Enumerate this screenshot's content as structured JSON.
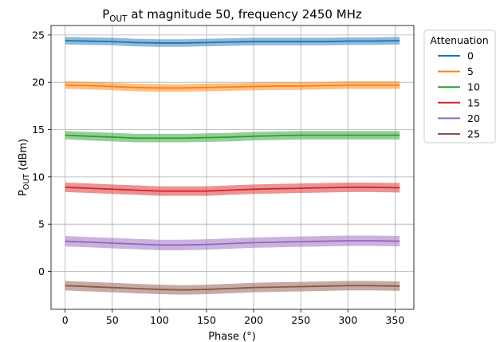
{
  "chart_data": {
    "type": "line",
    "title_main": "P",
    "title_sub": "OUT",
    "title_rest": " at magnitude 50, frequency 2450 MHz",
    "xlabel": "Phase (°)",
    "ylabel_main": "P",
    "ylabel_sub": "OUT",
    "ylabel_rest": " (dBm)",
    "xlim": [
      -15,
      370
    ],
    "ylim": [
      -4,
      26
    ],
    "xticks": [
      0,
      50,
      100,
      150,
      200,
      250,
      300,
      350
    ],
    "yticks": [
      0,
      5,
      10,
      15,
      20,
      25
    ],
    "grid": true,
    "legend_title": "Attenuation",
    "legend_position": "outside-right-top",
    "x": [
      0,
      25,
      50,
      75,
      100,
      125,
      150,
      175,
      200,
      225,
      250,
      275,
      300,
      325,
      355
    ],
    "series": [
      {
        "name": "0",
        "color": "#1f77b4",
        "values": [
          24.4,
          24.35,
          24.3,
          24.2,
          24.15,
          24.15,
          24.2,
          24.25,
          24.3,
          24.3,
          24.3,
          24.3,
          24.35,
          24.35,
          24.4
        ],
        "band": 0.4
      },
      {
        "name": "5",
        "color": "#ff7f0e",
        "values": [
          19.7,
          19.65,
          19.55,
          19.45,
          19.4,
          19.4,
          19.45,
          19.5,
          19.55,
          19.6,
          19.6,
          19.65,
          19.7,
          19.7,
          19.7
        ],
        "band": 0.4
      },
      {
        "name": "10",
        "color": "#2ca02c",
        "values": [
          14.4,
          14.3,
          14.2,
          14.1,
          14.1,
          14.1,
          14.15,
          14.2,
          14.3,
          14.35,
          14.4,
          14.4,
          14.4,
          14.4,
          14.4
        ],
        "band": 0.45
      },
      {
        "name": "15",
        "color": "#d62728",
        "values": [
          8.9,
          8.8,
          8.7,
          8.6,
          8.5,
          8.5,
          8.5,
          8.6,
          8.7,
          8.75,
          8.8,
          8.85,
          8.9,
          8.9,
          8.85
        ],
        "band": 0.5
      },
      {
        "name": "20",
        "color": "#9467bd",
        "values": [
          3.2,
          3.1,
          3.0,
          2.9,
          2.8,
          2.8,
          2.85,
          2.95,
          3.05,
          3.1,
          3.15,
          3.2,
          3.25,
          3.25,
          3.2
        ],
        "band": 0.55
      },
      {
        "name": "25",
        "color": "#8c564b",
        "values": [
          -1.5,
          -1.6,
          -1.7,
          -1.8,
          -1.9,
          -1.95,
          -1.9,
          -1.8,
          -1.7,
          -1.65,
          -1.6,
          -1.55,
          -1.5,
          -1.5,
          -1.55
        ],
        "band": 0.5
      }
    ]
  }
}
